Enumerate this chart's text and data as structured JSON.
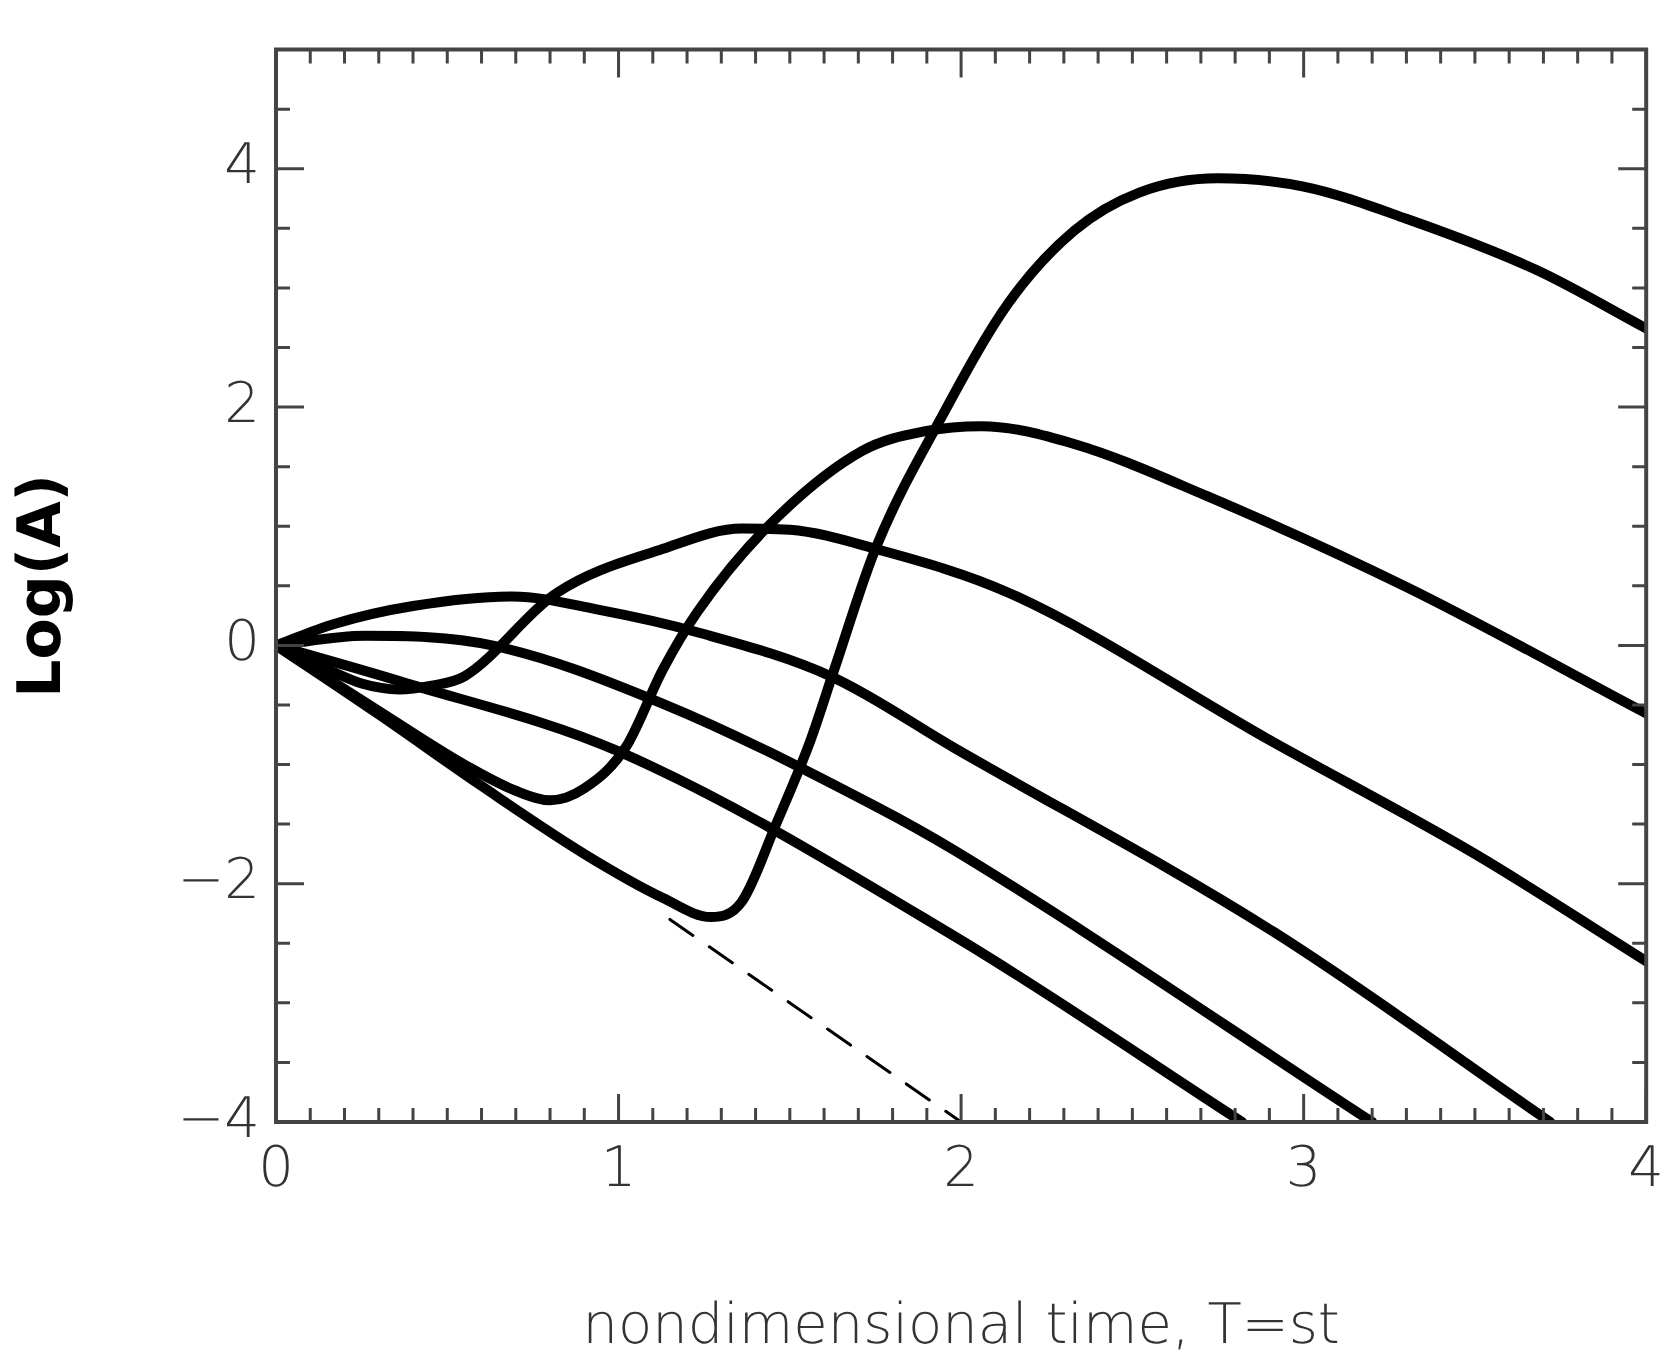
{
  "chart_data": {
    "type": "line",
    "xlabel": "nondimensional time, T=st",
    "ylabel": "Log(A)",
    "xlim": [
      0,
      4
    ],
    "ylim": [
      -4,
      5
    ],
    "xticks": [
      0,
      {
        "value": 0.1,
        "label": null
      },
      {
        "value": 0.2,
        "label": null
      },
      {
        "value": 0.3,
        "label": null
      },
      {
        "value": 0.4,
        "label": null
      },
      {
        "value": 0.5,
        "label": null
      },
      {
        "value": 0.6,
        "label": null
      },
      {
        "value": 0.7,
        "label": null
      },
      {
        "value": 0.8,
        "label": null
      },
      {
        "value": 0.9,
        "label": null
      },
      1,
      {
        "value": 1.1,
        "label": null
      },
      {
        "value": 1.2,
        "label": null
      },
      {
        "value": 1.3,
        "label": null
      },
      {
        "value": 1.4,
        "label": null
      },
      {
        "value": 1.5,
        "label": null
      },
      {
        "value": 1.6,
        "label": null
      },
      {
        "value": 1.7,
        "label": null
      },
      {
        "value": 1.8,
        "label": null
      },
      {
        "value": 1.9,
        "label": null
      },
      2,
      {
        "value": 2.1,
        "label": null
      },
      {
        "value": 2.2,
        "label": null
      },
      {
        "value": 2.3,
        "label": null
      },
      {
        "value": 2.4,
        "label": null
      },
      {
        "value": 2.5,
        "label": null
      },
      {
        "value": 2.6,
        "label": null
      },
      {
        "value": 2.7,
        "label": null
      },
      {
        "value": 2.8,
        "label": null
      },
      {
        "value": 2.9,
        "label": null
      },
      3,
      {
        "value": 3.1,
        "label": null
      },
      {
        "value": 3.2,
        "label": null
      },
      {
        "value": 3.3,
        "label": null
      },
      {
        "value": 3.4,
        "label": null
      },
      {
        "value": 3.5,
        "label": null
      },
      {
        "value": 3.6,
        "label": null
      },
      {
        "value": 3.7,
        "label": null
      },
      {
        "value": 3.8,
        "label": null
      },
      {
        "value": 3.9,
        "label": null
      },
      4
    ],
    "yticks": [
      -4,
      {
        "value": -3.5,
        "label": null
      },
      {
        "value": -3,
        "label": null
      },
      {
        "value": -2.5,
        "label": null
      },
      -2,
      {
        "value": -1.5,
        "label": null
      },
      {
        "value": -1,
        "label": null
      },
      {
        "value": -0.5,
        "label": null
      },
      0,
      {
        "value": 0.5,
        "label": null
      },
      {
        "value": 1,
        "label": null
      },
      {
        "value": 1.5,
        "label": null
      },
      2,
      {
        "value": 2.5,
        "label": null
      },
      {
        "value": 3,
        "label": null
      },
      {
        "value": 3.5,
        "label": null
      },
      4,
      {
        "value": 4.5,
        "label": null
      }
    ],
    "grid": false,
    "legend": false,
    "marker": "none",
    "series": [
      {
        "color": "#000000",
        "x": [
          0,
          0.3,
          0.6,
          0.9,
          1.13,
          1.27,
          1.36,
          1.46,
          1.56,
          1.63,
          1.75,
          1.94,
          2.14,
          2.33,
          2.52,
          2.75,
          3.0,
          3.3,
          3.68,
          4
        ],
        "values": [
          0,
          -0.58,
          -1.18,
          -1.75,
          -2.12,
          -2.28,
          -2.15,
          -1.5,
          -0.8,
          -0.2,
          0.81,
          1.9,
          2.88,
          3.48,
          3.8,
          3.92,
          3.85,
          3.58,
          3.15,
          2.66
        ]
      },
      {
        "color": "#000000",
        "x": [
          0,
          0.3,
          0.55,
          0.7,
          0.8,
          0.9,
          1.02,
          1.13,
          1.23,
          1.43,
          1.71,
          1.9,
          2.06,
          2.33,
          2.72,
          3.3,
          4
        ],
        "values": [
          0,
          -0.55,
          -1.0,
          -1.22,
          -1.3,
          -1.2,
          -0.86,
          -0.2,
          0.28,
          0.98,
          1.63,
          1.8,
          1.84,
          1.69,
          1.25,
          0.49,
          -0.57
        ]
      },
      {
        "color": "#000000",
        "x": [
          0,
          0.15,
          0.25,
          0.36,
          0.45,
          0.55,
          0.82,
          1.13,
          1.36,
          1.5,
          1.75,
          2.14,
          2.91,
          3.5,
          4
        ],
        "values": [
          0,
          -0.2,
          -0.32,
          -0.37,
          -0.34,
          -0.26,
          0.44,
          0.81,
          0.98,
          0.97,
          0.81,
          0.44,
          -0.81,
          -1.75,
          -2.65
        ]
      },
      {
        "color": "#000000",
        "x": [
          0,
          0.17,
          0.4,
          0.69,
          0.94,
          1.23,
          1.62,
          1.98,
          2.91,
          3.72
        ],
        "values": [
          0,
          0.18,
          0.33,
          0.41,
          0.3,
          0.11,
          -0.26,
          -0.86,
          -2.4,
          -4
        ]
      },
      {
        "color": "#000000",
        "x": [
          0,
          0.26,
          0.63,
          1.13,
          1.75,
          1.98,
          3.2
        ],
        "values": [
          0,
          0.08,
          0.0,
          -0.49,
          -1.35,
          -1.72,
          -4
        ]
      },
      {
        "color": "#000000",
        "x": [
          0,
          0.36,
          1.0,
          1.98,
          2.82
        ],
        "values": [
          0,
          -0.3,
          -0.89,
          -2.44,
          -4
        ]
      },
      {
        "color": "#000000",
        "line_style": "dashed",
        "x": [
          1.15,
          2.0
        ],
        "values": [
          -2.3,
          -4
        ]
      }
    ]
  }
}
